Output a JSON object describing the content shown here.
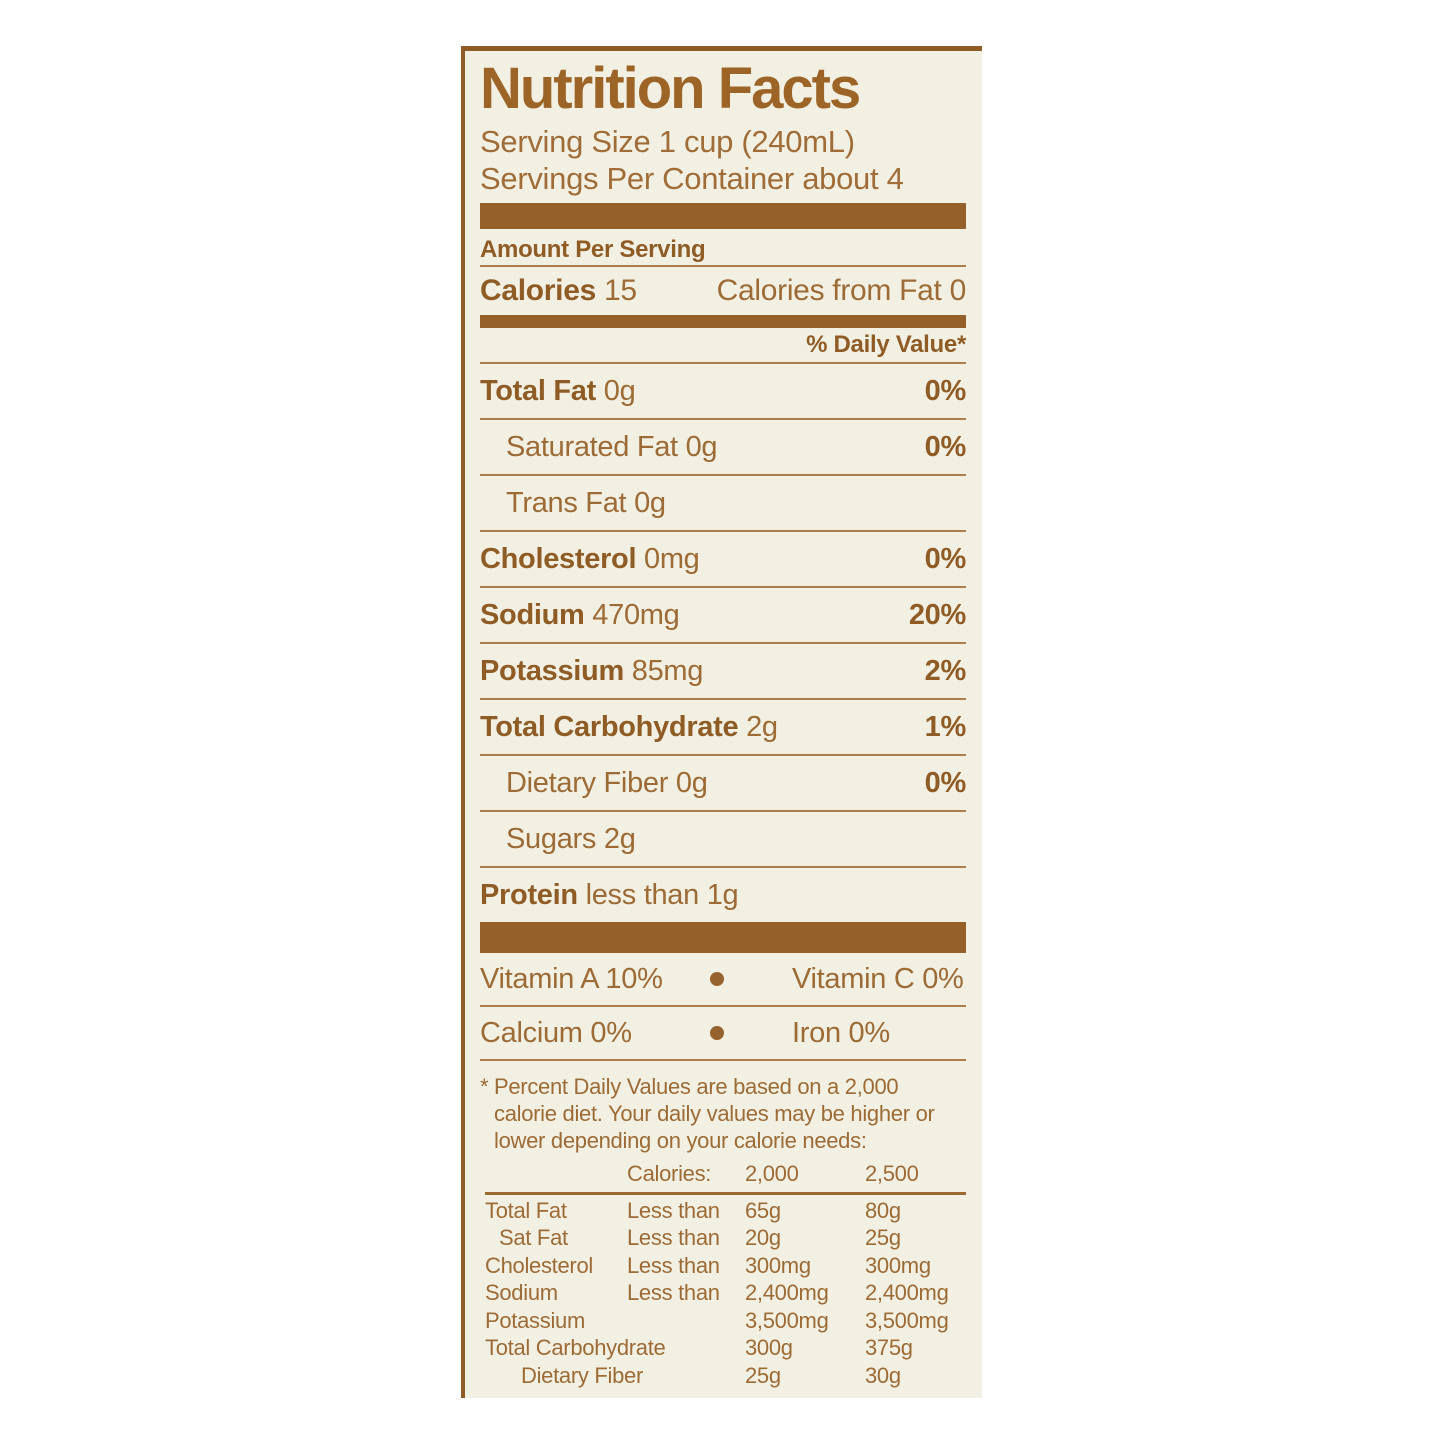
{
  "colors": {
    "ink_regular": "#a06d38",
    "ink_bold": "#8f5c26",
    "bar": "#96602a",
    "hairline": "#ad7e4b",
    "label_background": "#f2f0e3",
    "page_background": "#ffffff"
  },
  "label": {
    "title": "Nutrition Facts",
    "serving_size": "Serving Size 1 cup (240mL)",
    "servings_per_container": "Servings Per Container about 4",
    "amount_per_serving": "Amount Per Serving",
    "calories": {
      "label": "Calories",
      "value": "15",
      "from_fat": "Calories from Fat 0"
    },
    "daily_value_header": "% Daily Value*",
    "rows": [
      {
        "name": "Total Fat",
        "value": "0g",
        "dv": "0%"
      },
      {
        "name": "Saturated Fat",
        "value": "0g",
        "dv": "0%"
      },
      {
        "name": "Trans Fat",
        "value": "0g",
        "dv": ""
      },
      {
        "name": "Cholesterol",
        "value": "0mg",
        "dv": "0%"
      },
      {
        "name": "Sodium",
        "value": "470mg",
        "dv": "20%"
      },
      {
        "name": "Potassium",
        "value": "85mg",
        "dv": "2%"
      },
      {
        "name": "Total Carbohydrate",
        "value": "2g",
        "dv": "1%"
      },
      {
        "name": "Dietary Fiber",
        "value": "0g",
        "dv": "0%"
      },
      {
        "name": "Sugars",
        "value": "2g",
        "dv": ""
      },
      {
        "name": "Protein",
        "value": "less than 1g",
        "dv": ""
      }
    ],
    "vitamins": [
      {
        "left": "Vitamin A 10%",
        "right": "Vitamin C 0%"
      },
      {
        "left": "Calcium 0%",
        "right": "Iron 0%"
      }
    ],
    "footnote_marker": "*",
    "footnote": "Percent Daily Values are based on a 2,000 calorie diet. Your daily values may be higher or lower depending on your calorie needs:",
    "table": {
      "header": {
        "col2": "Calories:",
        "col3": "2,000",
        "col4": "2,500"
      },
      "rows": [
        {
          "name": "Total Fat",
          "qual": "Less than",
          "v2000": "65g",
          "v2500": "80g"
        },
        {
          "name": "Sat Fat",
          "qual": "Less than",
          "v2000": "20g",
          "v2500": "25g"
        },
        {
          "name": "Cholesterol",
          "qual": "Less than",
          "v2000": "300mg",
          "v2500": "300mg"
        },
        {
          "name": "Sodium",
          "qual": "Less than",
          "v2000": "2,400mg",
          "v2500": "2,400mg"
        },
        {
          "name": "Potassium",
          "qual": "",
          "v2000": "3,500mg",
          "v2500": "3,500mg"
        },
        {
          "name": "Total Carbohydrate",
          "qual": "",
          "v2000": "300g",
          "v2500": "375g"
        },
        {
          "name": "Dietary Fiber",
          "qual": "",
          "v2000": "25g",
          "v2500": "30g"
        }
      ]
    }
  }
}
